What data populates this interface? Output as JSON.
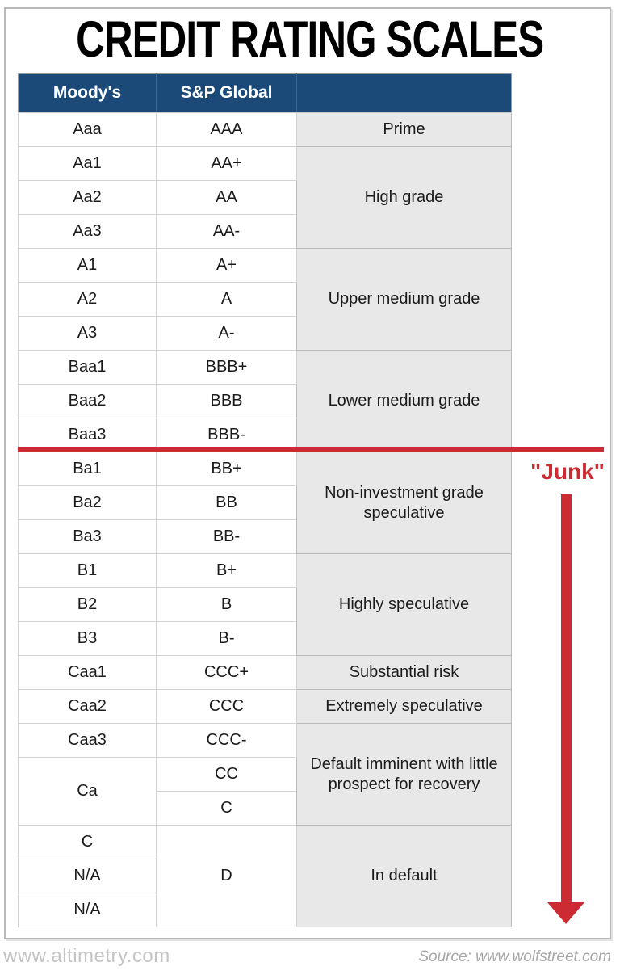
{
  "title": "CREDIT RATING SCALES",
  "chart_data": {
    "type": "table",
    "title": "CREDIT RATING SCALES",
    "headers": [
      "Moody's",
      "S&P Global",
      ""
    ],
    "rows": [
      {
        "moody": "Aaa",
        "sp": "AAA",
        "desc": "Prime",
        "desc_span": 1
      },
      {
        "moody": "Aa1",
        "sp": "AA+",
        "desc": "High grade",
        "desc_span": 3
      },
      {
        "moody": "Aa2",
        "sp": "AA"
      },
      {
        "moody": "Aa3",
        "sp": "AA-"
      },
      {
        "moody": "A1",
        "sp": "A+",
        "desc": "Upper medium grade",
        "desc_span": 3
      },
      {
        "moody": "A2",
        "sp": "A"
      },
      {
        "moody": "A3",
        "sp": "A-"
      },
      {
        "moody": "Baa1",
        "sp": "BBB+",
        "desc": "Lower medium grade",
        "desc_span": 3
      },
      {
        "moody": "Baa2",
        "sp": "BBB"
      },
      {
        "moody": "Baa3",
        "sp": "BBB-"
      },
      {
        "moody": "Ba1",
        "sp": "BB+",
        "desc": "Non-investment grade speculative",
        "desc_span": 3
      },
      {
        "moody": "Ba2",
        "sp": "BB"
      },
      {
        "moody": "Ba3",
        "sp": "BB-"
      },
      {
        "moody": "B1",
        "sp": "B+",
        "desc": "Highly speculative",
        "desc_span": 3
      },
      {
        "moody": "B2",
        "sp": "B"
      },
      {
        "moody": "B3",
        "sp": "B-"
      },
      {
        "moody": "Caa1",
        "sp": "CCC+",
        "desc": "Substantial risk",
        "desc_span": 1
      },
      {
        "moody": "Caa2",
        "sp": "CCC",
        "desc": "Extremely speculative",
        "desc_span": 1
      },
      {
        "moody": "Caa3",
        "sp": "CCC-",
        "desc": "Default imminent with little prospect for recovery",
        "desc_span": 3
      },
      {
        "moody": "Ca",
        "moody_span": 2,
        "sp": "CC"
      },
      {
        "sp": "C"
      },
      {
        "moody": "C",
        "sp": "D",
        "sp_span": 3,
        "desc": "In default",
        "desc_span": 3
      },
      {
        "moody": "N/A"
      },
      {
        "moody": "N/A"
      }
    ],
    "divider_after_row_index": 9,
    "annotation_label": "\"Junk\"",
    "arrow_direction": "down"
  },
  "footer": {
    "left": "www.altimetry.com",
    "right": "Source: www.wolfstreet.com"
  },
  "colors": {
    "header_bg": "#1b4a78",
    "header_text": "#ffffff",
    "desc_cell_bg": "#e8e8e8",
    "accent_red": "#cc2b33"
  }
}
